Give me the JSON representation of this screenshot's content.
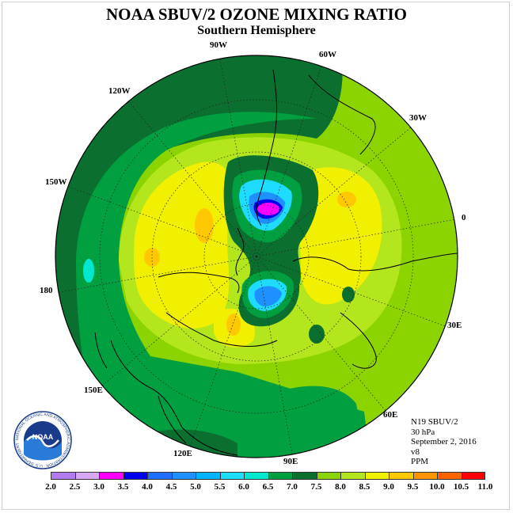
{
  "title": "NOAA SBUV/2 OZONE MIXING RATIO",
  "subtitle": "Southern Hemisphere",
  "longitude_labels": [
    "90W",
    "60W",
    "30W",
    "0",
    "30E",
    "60E",
    "90E",
    "120E",
    "150E",
    "180",
    "150W",
    "120W"
  ],
  "info": {
    "instrument": "N19 SBUV/2",
    "level": "30 hPa",
    "date": "September 2, 2016",
    "version": "v8",
    "units": "PPM"
  },
  "colorbar": {
    "labels": [
      "2.0",
      "2.5",
      "3.0",
      "3.5",
      "4.0",
      "4.5",
      "5.0",
      "5.5",
      "6.0",
      "6.5",
      "7.0",
      "7.5",
      "8.0",
      "8.5",
      "9.0",
      "9.5",
      "10.0",
      "10.5",
      "11.0"
    ],
    "colors": [
      "#b07cf0",
      "#d8a8f4",
      "#ff00ff",
      "#0000ee",
      "#1e6eff",
      "#1e90ff",
      "#00b4ff",
      "#1edcff",
      "#00e8d0",
      "#00a040",
      "#0b6f30",
      "#8cd400",
      "#b4e61e",
      "#f0f000",
      "#ffc800",
      "#ff9600",
      "#ff6400",
      "#ff0000",
      "#8c5a3c"
    ]
  },
  "logo": {
    "text": "NOAA",
    "ring_text": "NATIONAL OCEANIC AND ATMOSPHERIC ADMINISTRATION · U.S. DEPARTMENT OF COMMERCE"
  }
}
